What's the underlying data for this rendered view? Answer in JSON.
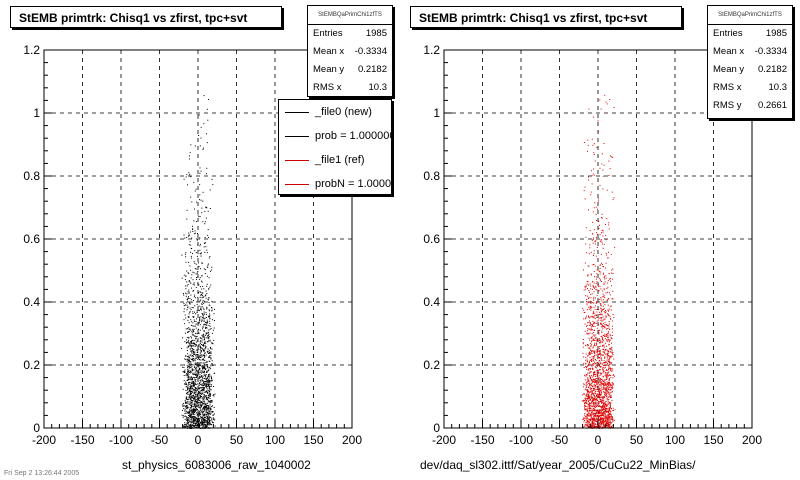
{
  "chart_data": [
    {
      "type": "scatter",
      "title": "StEMB primtrk: Chisq1 vs zfirst, tpc+svt",
      "xlabel": "st_physics_6083006_raw_1040002",
      "ylabel": "",
      "xlim": [
        -200,
        200
      ],
      "ylim": [
        0,
        1.2
      ],
      "x_ticks": [
        "-200",
        "-150",
        "-100",
        "-50",
        "0",
        "50",
        "100",
        "150",
        "200"
      ],
      "y_ticks": [
        "0",
        "0.2",
        "0.4",
        "0.6",
        "0.8",
        "1",
        "1.2"
      ],
      "grid": true,
      "marker_color": "#000000",
      "point_distribution": {
        "x_center": 0,
        "x_halfwidth": 22,
        "y_density_profile": "dense near 0, thinning toward 1.2",
        "count": 1985
      },
      "stats": {
        "header": "StEMBQaPrimChi1zfTS",
        "rows": [
          {
            "label": "Entries",
            "value": "1985"
          },
          {
            "label": "Mean x",
            "value": "-0.3334"
          },
          {
            "label": "Mean y",
            "value": "0.2182"
          },
          {
            "label": "RMS x",
            "value": "10.3"
          }
        ]
      },
      "legend": {
        "placement": "top-right",
        "entries": [
          {
            "label": "_file0 (new)",
            "color": "#000000"
          },
          {
            "label": "prob = 1.000000",
            "color": "#000000"
          },
          {
            "label": "_file1 (ref)",
            "color": "#cc0000"
          },
          {
            "label": "probN = 1.000000",
            "color": "#cc0000"
          }
        ]
      }
    },
    {
      "type": "scatter",
      "title": "StEMB primtrk: Chisq1 vs zfirst, tpc+svt",
      "xlabel": "dev/daq_sl302.ittf/Sat/year_2005/CuCu22_MinBias/",
      "ylabel": "",
      "xlim": [
        -200,
        200
      ],
      "ylim": [
        0,
        1.2
      ],
      "x_ticks": [
        "-200",
        "-150",
        "-100",
        "-50",
        "0",
        "50",
        "100",
        "150",
        "200"
      ],
      "y_ticks": [
        "0",
        "0.2",
        "0.4",
        "0.6",
        "0.8",
        "1",
        "1.2"
      ],
      "grid": true,
      "marker_color": "#dd0000",
      "point_distribution": {
        "x_center": 0,
        "x_halfwidth": 22,
        "y_density_profile": "dense near 0, thinning toward 1.2",
        "count": 1985
      },
      "stats": {
        "header": "StEMBQaPrimChi1zfTS",
        "rows": [
          {
            "label": "Entries",
            "value": "1985"
          },
          {
            "label": "Mean x",
            "value": "-0.3334"
          },
          {
            "label": "Mean y",
            "value": "0.2182"
          },
          {
            "label": "RMS x",
            "value": "10.3"
          },
          {
            "label": "RMS y",
            "value": "0.2661"
          }
        ]
      }
    }
  ],
  "footer_text": "Fri Sep  2 13:26:44 2005"
}
